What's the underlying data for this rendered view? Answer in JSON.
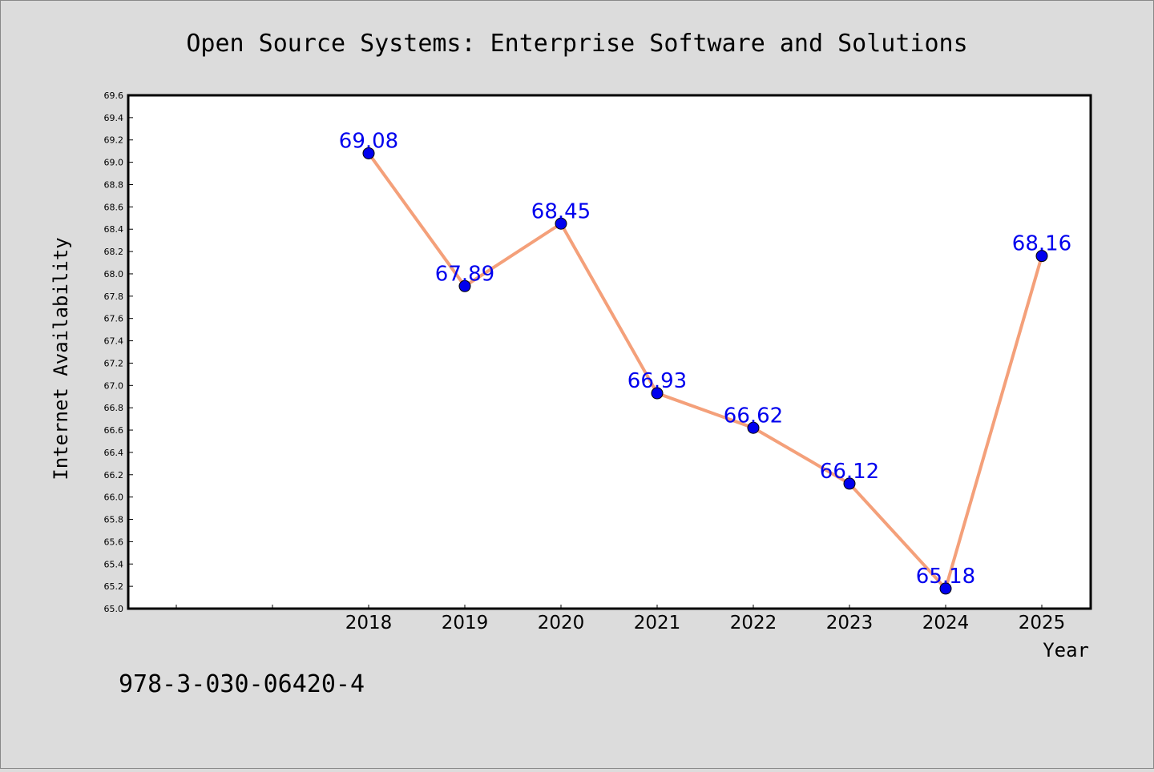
{
  "chart_data": {
    "type": "line",
    "title": "Open Source Systems: Enterprise Software and Solutions",
    "xlabel": "Year",
    "ylabel": "Internet Availability",
    "categories": [
      "2018",
      "2019",
      "2020",
      "2021",
      "2022",
      "2023",
      "2024",
      "2025"
    ],
    "x_slots": 10,
    "x_start_slot": 2,
    "values": [
      69.08,
      67.89,
      68.45,
      66.93,
      66.62,
      66.12,
      65.18,
      68.16
    ],
    "data_labels": [
      "69.08",
      "67.89",
      "68.45",
      "66.93",
      "66.62",
      "66.12",
      "65.18",
      "68.16"
    ],
    "ylim": [
      65.0,
      69.6
    ],
    "ytick_step": 0.2,
    "grid": false,
    "line_color": "#f4a07a",
    "marker_color": "#0000ee",
    "label_color": "#0000ee",
    "background_color": "#dcdcdc"
  },
  "footnote": "978-3-030-06420-4"
}
